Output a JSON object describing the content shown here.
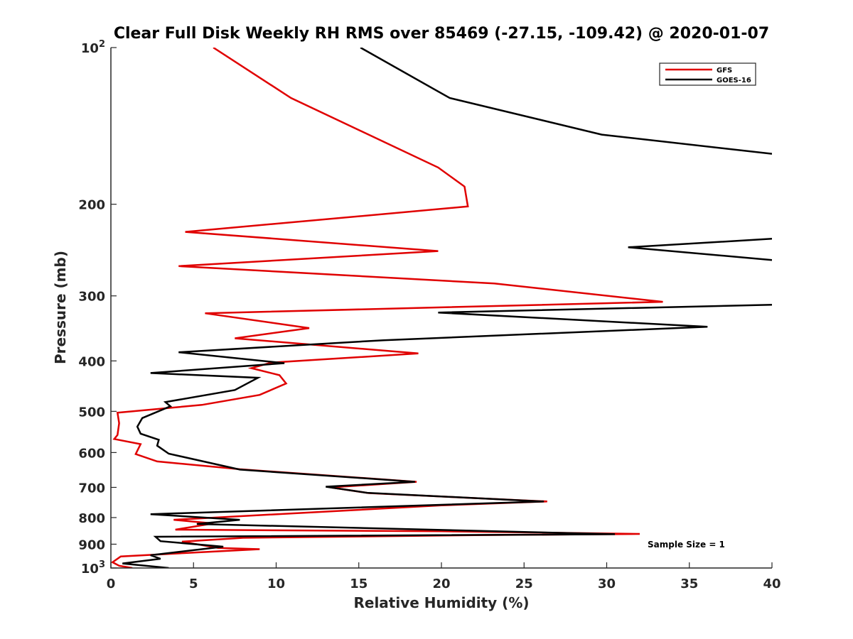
{
  "chart_data": {
    "type": "line",
    "title": "Clear Full Disk Weekly RH RMS over 85469 (-27.15, -109.42) @ 2020-01-07",
    "xlabel": "Relative Humidity (%)",
    "ylabel": "Pressure (mb)",
    "xlim": [
      0,
      40
    ],
    "ylim": [
      100,
      1000
    ],
    "y_scale": "log",
    "y_reversed": true,
    "grid": false,
    "x_ticks": [
      0,
      5,
      10,
      15,
      20,
      25,
      30,
      35,
      40
    ],
    "y_ticks": [
      {
        "value": 100,
        "base": "10",
        "exp": "2"
      },
      {
        "value": 200,
        "label": "200"
      },
      {
        "value": 300,
        "label": "300"
      },
      {
        "value": 400,
        "label": "400"
      },
      {
        "value": 500,
        "label": "500"
      },
      {
        "value": 600,
        "label": "600"
      },
      {
        "value": 700,
        "label": "700"
      },
      {
        "value": 800,
        "label": "800"
      },
      {
        "value": 900,
        "label": "900"
      },
      {
        "value": 1000,
        "base": "10",
        "exp": "3"
      }
    ],
    "legend_position": "top-right",
    "annotation": "Sample Size = 1",
    "series": [
      {
        "name": "GFS",
        "color": "#e00000",
        "points": [
          [
            6.2,
            100
          ],
          [
            10.9,
            125
          ],
          [
            19.8,
            170
          ],
          [
            21.4,
            185
          ],
          [
            21.6,
            202
          ],
          [
            4.5,
            226
          ],
          [
            19.8,
            246
          ],
          [
            4.1,
            263
          ],
          [
            23.2,
            284
          ],
          [
            33.4,
            308
          ],
          [
            5.7,
            324
          ],
          [
            12.0,
            346
          ],
          [
            7.5,
            362
          ],
          [
            18.6,
            387
          ],
          [
            9.7,
            403
          ],
          [
            8.5,
            413
          ],
          [
            10.2,
            426
          ],
          [
            10.6,
            442
          ],
          [
            9.0,
            465
          ],
          [
            5.5,
            486
          ],
          [
            0.4,
            503
          ],
          [
            0.5,
            527
          ],
          [
            0.4,
            555
          ],
          [
            0.2,
            565
          ],
          [
            1.8,
            578
          ],
          [
            1.5,
            604
          ],
          [
            2.8,
            624
          ],
          [
            7.8,
            646
          ],
          [
            18.5,
            683
          ],
          [
            13.3,
            700
          ],
          [
            15.6,
            718
          ],
          [
            26.4,
            745
          ],
          [
            20.0,
            758
          ],
          [
            3.8,
            808
          ],
          [
            6.2,
            821
          ],
          [
            3.9,
            844
          ],
          [
            20.0,
            850
          ],
          [
            32.0,
            860
          ],
          [
            22.0,
            865
          ],
          [
            8.0,
            875
          ],
          [
            4.3,
            890
          ],
          [
            6.5,
            915
          ],
          [
            9.0,
            920
          ],
          [
            0.6,
            950
          ],
          [
            0.1,
            975
          ],
          [
            0.5,
            990
          ],
          [
            1.3,
            1000
          ]
        ]
      },
      {
        "name": "GOES-16",
        "color": "#000000",
        "points": [
          [
            15.1,
            100
          ],
          [
            20.5,
            125
          ],
          [
            29.7,
            147
          ],
          [
            40.0,
            160
          ],
          [
            null,
            null
          ],
          [
            40.0,
            233
          ],
          [
            31.3,
            242
          ],
          [
            40.0,
            256
          ],
          [
            null,
            null
          ],
          [
            40.0,
            312
          ],
          [
            19.8,
            323
          ],
          [
            36.1,
            344
          ],
          [
            16.5,
            365
          ],
          [
            4.1,
            385
          ],
          [
            10.5,
            404
          ],
          [
            2.4,
            422
          ],
          [
            8.9,
            431
          ],
          [
            7.5,
            455
          ],
          [
            3.3,
            480
          ],
          [
            3.6,
            489
          ],
          [
            1.9,
            515
          ],
          [
            1.6,
            535
          ],
          [
            1.8,
            552
          ],
          [
            2.9,
            567
          ],
          [
            2.8,
            582
          ],
          [
            3.5,
            603
          ],
          [
            7.8,
            647
          ],
          [
            18.4,
            683
          ],
          [
            13.0,
            698
          ],
          [
            15.5,
            717
          ],
          [
            26.2,
            745
          ],
          [
            2.4,
            788
          ],
          [
            7.8,
            808
          ],
          [
            5.2,
            823
          ],
          [
            30.5,
            861
          ],
          [
            2.7,
            871
          ],
          [
            3.0,
            888
          ],
          [
            6.8,
            910
          ],
          [
            2.4,
            945
          ],
          [
            3.0,
            960
          ],
          [
            0.7,
            980
          ],
          [
            3.5,
            1000
          ]
        ]
      }
    ]
  }
}
